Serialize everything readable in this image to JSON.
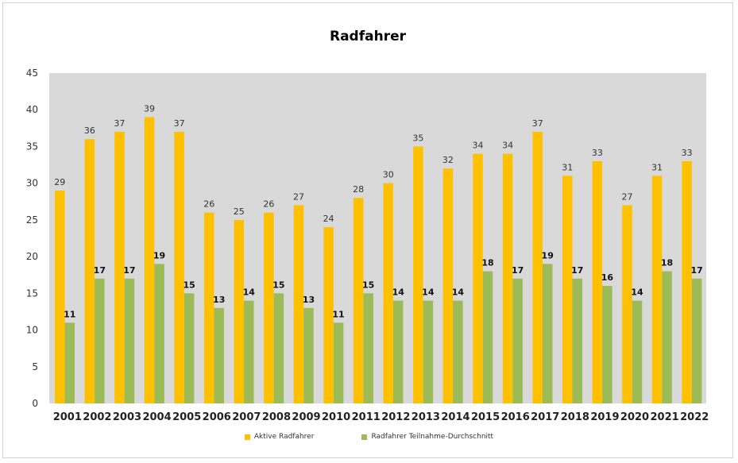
{
  "colors": {
    "series1": "#FFC000",
    "series2": "#9BBB59",
    "plot_bg": "#D9D9D9"
  },
  "chart_data": {
    "type": "bar",
    "title": "Radfahrer",
    "xlabel": "",
    "ylabel": "",
    "ylim": [
      0,
      45
    ],
    "yticks": [
      0,
      5,
      10,
      15,
      20,
      25,
      30,
      35,
      40,
      45
    ],
    "grid": false,
    "legend_position": "bottom",
    "categories": [
      "2001",
      "2002",
      "2003",
      "2004",
      "2005",
      "2006",
      "2007",
      "2008",
      "2009",
      "2010",
      "2011",
      "2012",
      "2013",
      "2014",
      "2015",
      "2016",
      "2017",
      "2018",
      "2019",
      "2020",
      "2021",
      "2022"
    ],
    "series": [
      {
        "name": "Aktive Radfahrer",
        "values": [
          29,
          36,
          37,
          39,
          37,
          26,
          25,
          26,
          27,
          24,
          28,
          30,
          35,
          32,
          34,
          34,
          37,
          31,
          33,
          27,
          31,
          33
        ]
      },
      {
        "name": "Radfahrer Teilnahme-Durchschnitt",
        "values": [
          11,
          17,
          17,
          19,
          15,
          13,
          14,
          15,
          13,
          11,
          15,
          14,
          14,
          14,
          18,
          17,
          19,
          17,
          16,
          14,
          18,
          17
        ]
      }
    ]
  }
}
